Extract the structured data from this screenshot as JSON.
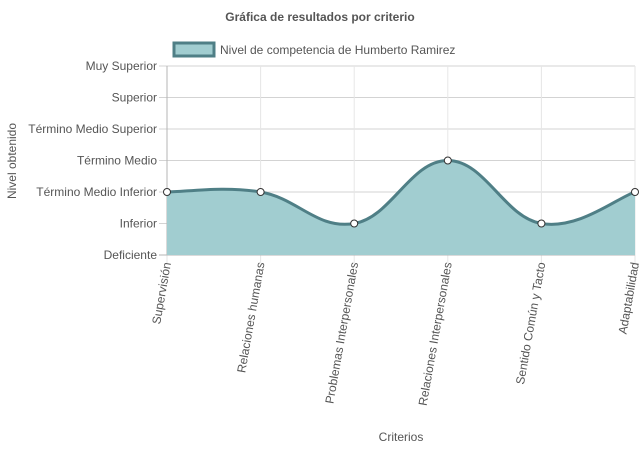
{
  "chart_data": {
    "type": "area",
    "title": "Gráfica de resultados por criterio",
    "xlabel": "Criterios",
    "ylabel": "Nivel obtenido",
    "y_levels": [
      "Deficiente",
      "Inferior",
      "Término Medio Inferior",
      "Término Medio",
      "Término Medio Superior",
      "Superior",
      "Muy Superior"
    ],
    "categories": [
      "Supervisión",
      "Relaciones humanas",
      "Problemas Interpersonales",
      "Relaciones Interpersonales",
      "Sentido Común y Tacto",
      "Adaptabilidad"
    ],
    "series": [
      {
        "name": "Nivel de competencia de Humberto Ramirez",
        "values": [
          2,
          2,
          1,
          3,
          1,
          2
        ],
        "line_color": "#4f7f86",
        "fill_color": "#a1cdd0"
      }
    ],
    "ylim": [
      0,
      6
    ],
    "grid": true,
    "legend_position": "top"
  }
}
